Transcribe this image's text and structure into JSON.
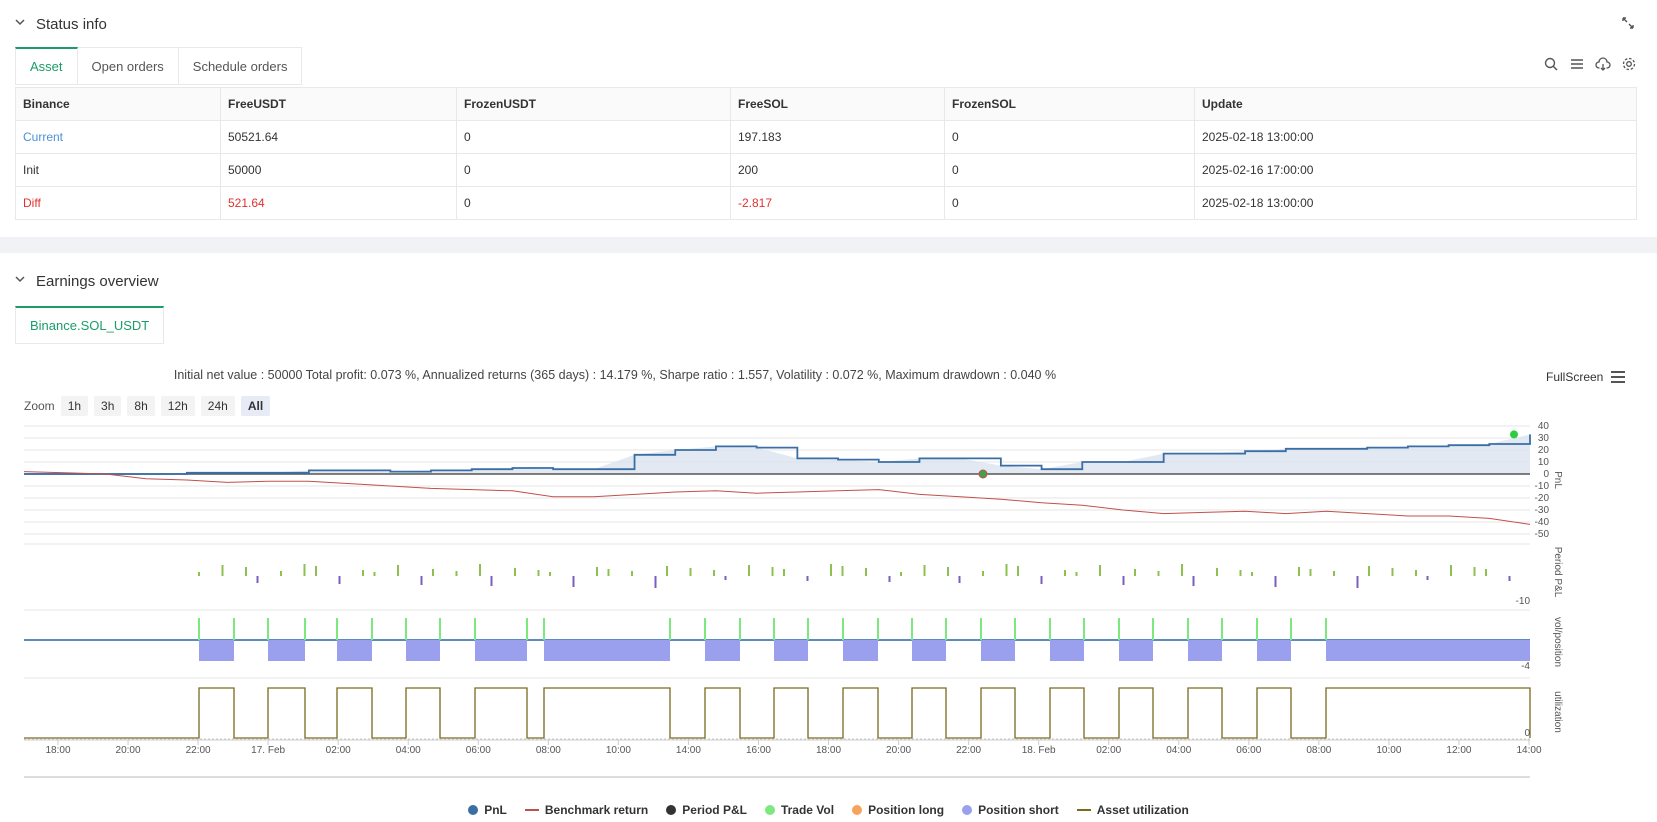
{
  "status": {
    "title": "Status info",
    "tabs": [
      "Asset",
      "Open orders",
      "Schedule orders"
    ],
    "table": {
      "headers": [
        "Binance",
        "FreeUSDT",
        "FrozenUSDT",
        "FreeSOL",
        "FrozenSOL",
        "Update"
      ],
      "rows": [
        [
          "Current",
          "50521.64",
          "0",
          "197.183",
          "0",
          "2025-02-18 13:00:00"
        ],
        [
          "Init",
          "50000",
          "0",
          "200",
          "0",
          "2025-02-16 17:00:00"
        ],
        [
          "Diff",
          "521.64",
          "0",
          "-2.817",
          "0",
          "2025-02-18 13:00:00"
        ]
      ]
    }
  },
  "earnings": {
    "title": "Earnings overview",
    "tab": "Binance.SOL_USDT",
    "summary": "Initial net value : 50000 Total profit: 0.073 %, Annualized returns (365 days) : 14.179 %, Sharpe ratio : 1.557, Volatility : 0.072 %, Maximum drawdown : 0.040 %",
    "fullscreen": "FullScreen",
    "zoom_label": "Zoom",
    "zoom_options": [
      "1h",
      "3h",
      "8h",
      "12h",
      "24h",
      "All"
    ]
  },
  "colors": {
    "pnl": "#3a6ea5",
    "benchmark": "#c0504d",
    "period": "#333333",
    "trade_vol": "#7de87d",
    "position_long": "#f7a35c",
    "position_short": "#9aa0ee",
    "asset_util": "#7a6a1e",
    "accent": "#1a9d6a"
  },
  "chart_data": {
    "type": "line",
    "x_ticks": [
      "18:00",
      "20:00",
      "22:00",
      "17. Feb",
      "02:00",
      "04:00",
      "06:00",
      "08:00",
      "10:00",
      "14:00",
      "16:00",
      "18:00",
      "20:00",
      "22:00",
      "18. Feb",
      "02:00",
      "04:00",
      "06:00",
      "08:00",
      "10:00",
      "12:00",
      "14:00"
    ],
    "pnl_axis": {
      "label": "PnL",
      "ticks": [
        40,
        30,
        20,
        10,
        0,
        -10,
        -20,
        -30,
        -40,
        -50
      ],
      "ylim": [
        -50,
        40
      ]
    },
    "period_axis": {
      "label": "Period P&L",
      "ticks": [
        -10
      ]
    },
    "position_axis": {
      "label": "vol/position",
      "ticks": [
        -4
      ]
    },
    "util_axis": {
      "label": "utilization",
      "ticks": [
        0
      ]
    },
    "pnl": [
      0,
      0,
      0,
      0,
      1,
      1,
      1,
      3,
      3,
      2,
      3,
      4,
      5,
      4,
      4,
      16,
      20,
      23,
      22,
      13,
      12,
      10,
      13,
      13,
      7,
      4,
      10,
      10,
      17,
      17,
      19,
      21,
      21,
      22,
      23,
      24,
      25,
      33
    ],
    "benchmark": [
      2,
      1,
      0,
      -4,
      -5,
      -7,
      -6,
      -6,
      -8,
      -10,
      -12,
      -13,
      -14,
      -19,
      -19,
      -17,
      -15,
      -14,
      -16,
      -15,
      -14,
      -13,
      -17,
      -19,
      -21,
      -24,
      -26,
      -30,
      -33,
      -32,
      -31,
      -33,
      -31,
      -33,
      -35,
      -35,
      -37,
      -42
    ],
    "legend": [
      "PnL",
      "Benchmark return",
      "Period P&L",
      "Trade Vol",
      "Position long",
      "Position short",
      "Asset utilization"
    ]
  }
}
